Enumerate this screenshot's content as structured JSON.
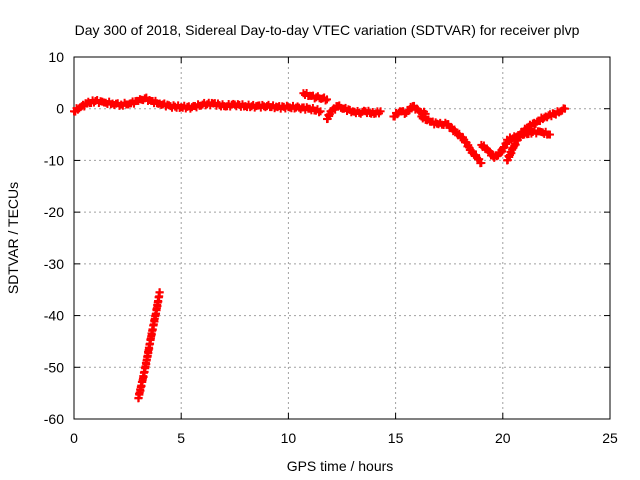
{
  "chart_data": {
    "type": "scatter",
    "title": "Day 300 of 2018, Sidereal Day-to-day VTEC variation (SDTVAR) for receiver plvp",
    "xlabel": "GPS time / hours",
    "ylabel": "SDTVAR / TECUs",
    "xlim": [
      0,
      25
    ],
    "ylim": [
      -60,
      10
    ],
    "xticks": [
      0,
      5,
      10,
      15,
      20,
      25
    ],
    "yticks": [
      10,
      0,
      -10,
      -20,
      -30,
      -40,
      -50,
      -60
    ],
    "xtick_labels": [
      "0",
      "5",
      "10",
      "15",
      "20",
      "25"
    ],
    "ytick_labels": [
      "10",
      "0",
      "-10",
      "-20",
      "-30",
      "-40",
      "-50",
      "-60"
    ],
    "grid": true,
    "marker": "+",
    "color": "#ff0000",
    "series": [
      {
        "name": "plvp",
        "segments": [
          {
            "x": [
              0.0,
              0.3,
              0.6,
              1.0,
              1.4,
              1.8,
              2.2,
              2.6,
              3.0,
              3.3,
              3.6,
              4.0,
              4.5,
              5.0,
              5.5,
              6.0,
              6.5,
              7.0,
              7.5,
              8.0,
              8.5,
              9.0,
              9.5,
              10.0,
              10.5,
              11.0,
              11.5
            ],
            "y": [
              -0.5,
              0.3,
              1.0,
              1.5,
              1.2,
              1.0,
              0.8,
              1.0,
              1.5,
              2.0,
              1.5,
              1.0,
              0.5,
              0.3,
              0.3,
              0.8,
              1.0,
              0.5,
              0.8,
              0.5,
              0.5,
              0.5,
              0.3,
              0.3,
              0.2,
              0.0,
              -0.5
            ]
          },
          {
            "x": [
              10.7,
              11.0,
              11.3,
              11.6,
              11.8
            ],
            "y": [
              3.0,
              2.5,
              2.2,
              2.0,
              1.8
            ]
          },
          {
            "x": [
              11.8,
              12.0,
              12.3,
              12.6,
              13.0,
              13.3,
              13.6,
              14.0,
              14.3
            ],
            "y": [
              -2.0,
              -0.5,
              0.5,
              0.0,
              -0.5,
              -0.8,
              -0.5,
              -1.0,
              -0.5
            ]
          },
          {
            "x": [
              14.9,
              15.2,
              15.5,
              15.8,
              16.1,
              16.4
            ],
            "y": [
              -1.5,
              -0.5,
              -0.8,
              0.5,
              -0.5,
              -1.0
            ]
          },
          {
            "x": [
              16.2,
              16.6,
              17.0,
              17.4,
              17.8,
              18.2,
              18.5,
              18.8,
              19.0
            ],
            "y": [
              -1.5,
              -2.5,
              -3.0,
              -3.0,
              -4.5,
              -6.0,
              -8.0,
              -9.5,
              -10.5
            ]
          },
          {
            "x": [
              19.0,
              19.3,
              19.6,
              19.9,
              20.2
            ],
            "y": [
              -7.0,
              -8.0,
              -9.5,
              -8.5,
              -6.5
            ]
          },
          {
            "x": [
              20.2,
              20.6,
              21.0,
              21.4,
              21.8,
              22.2
            ],
            "y": [
              -6.0,
              -5.5,
              -5.0,
              -4.5,
              -4.5,
              -5.0
            ]
          },
          {
            "x": [
              20.2,
              20.5,
              20.8,
              21.2,
              21.6,
              22.0,
              22.4,
              22.7,
              22.9
            ],
            "y": [
              -10.0,
              -7.5,
              -5.0,
              -3.5,
              -2.5,
              -1.5,
              -1.0,
              -0.5,
              0.0
            ]
          },
          {
            "x": [
              3.0,
              3.2,
              3.4,
              3.6,
              3.8,
              4.0
            ],
            "y": [
              -56.0,
              -52.5,
              -48.5,
              -44.0,
              -40.0,
              -35.5
            ]
          }
        ]
      }
    ]
  }
}
